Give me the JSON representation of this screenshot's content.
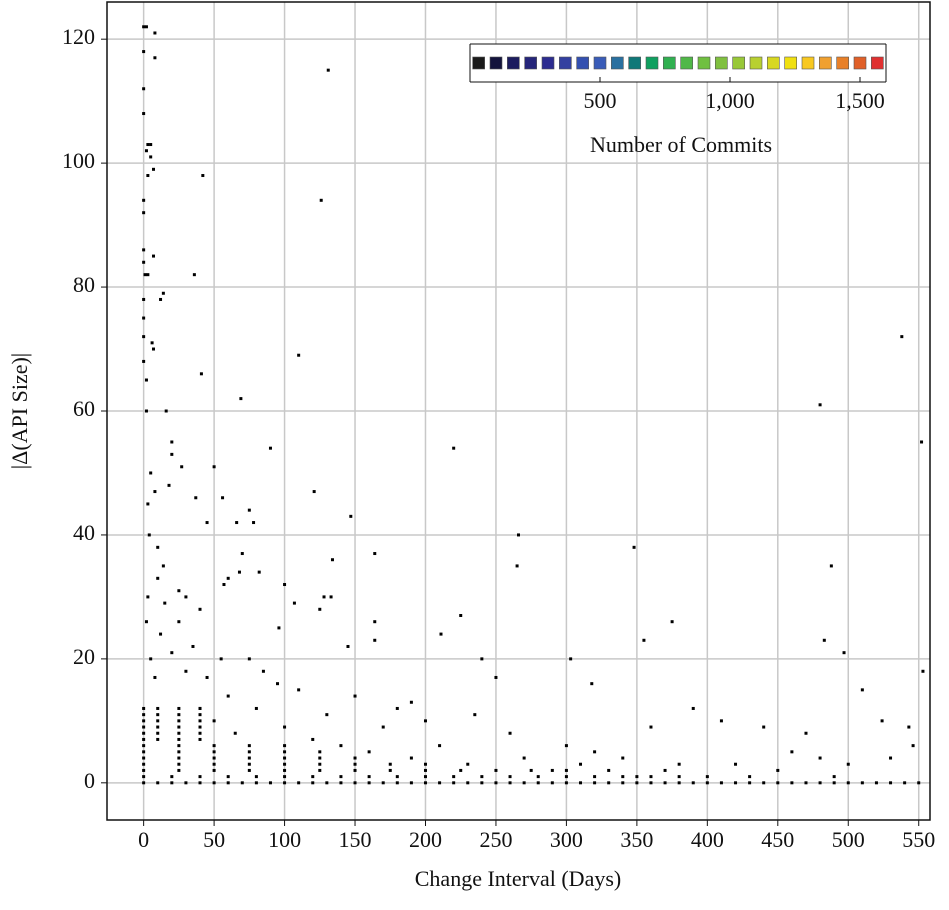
{
  "chart_data": {
    "type": "scatter",
    "x_label": "Change Interval (Days)",
    "y_label": "|Δ(API Size)|",
    "xlim": [
      -26,
      558
    ],
    "ylim": [
      -6,
      126
    ],
    "xticks": [
      0,
      50,
      100,
      150,
      200,
      250,
      300,
      350,
      400,
      450,
      500,
      550
    ],
    "yticks": [
      0,
      20,
      40,
      60,
      80,
      100,
      120
    ],
    "grid": true,
    "color": "#000000",
    "x": [
      0,
      10,
      20,
      30,
      40,
      50,
      60,
      70,
      80,
      90,
      100,
      110,
      120,
      130,
      140,
      150,
      160,
      170,
      180,
      190,
      200,
      210,
      220,
      230,
      240,
      250,
      260,
      270,
      280,
      290,
      300,
      310,
      320,
      330,
      340,
      350,
      360,
      370,
      380,
      390,
      400,
      410,
      420,
      430,
      440,
      450,
      460,
      470,
      480,
      490,
      500,
      510,
      520,
      530,
      540,
      550,
      0,
      20,
      40,
      60,
      80,
      100,
      120,
      140,
      160,
      180,
      200,
      220,
      240,
      260,
      280,
      300,
      320,
      340,
      360,
      380,
      400,
      0,
      25,
      50,
      75,
      100,
      125,
      150,
      175,
      200,
      225,
      250,
      275,
      300,
      0,
      25,
      50,
      75,
      100,
      125,
      150,
      175,
      200,
      0,
      25,
      50,
      75,
      100,
      125,
      150,
      0,
      25,
      50,
      75,
      100,
      125,
      0,
      25,
      50,
      75,
      100,
      0,
      10,
      25,
      40,
      0,
      10,
      25,
      40,
      0,
      10,
      25,
      40,
      0,
      10,
      25,
      40,
      0,
      10,
      25,
      40,
      0,
      10,
      25,
      40,
      0,
      2,
      8,
      8,
      0,
      0,
      0,
      3,
      5,
      2,
      5,
      7,
      3,
      0,
      0,
      0,
      0,
      1,
      3,
      7,
      14,
      12,
      0,
      0,
      7,
      6,
      0,
      0,
      2,
      2,
      16,
      42,
      36,
      41,
      126,
      131,
      110,
      69,
      90,
      121,
      147,
      220,
      266,
      265,
      348,
      164,
      134,
      480,
      538,
      552,
      488,
      483,
      497,
      553,
      303,
      318,
      355,
      375,
      211,
      225,
      510,
      524,
      543,
      546,
      20,
      20,
      27,
      50,
      18,
      5,
      8,
      37,
      56,
      75,
      78,
      66,
      45,
      100,
      107,
      128,
      125,
      133,
      145,
      164,
      164,
      57,
      60,
      68,
      70,
      82,
      96,
      3,
      4,
      10,
      14,
      25,
      30,
      40,
      55,
      85,
      110,
      150,
      180,
      200,
      235,
      260,
      300,
      320,
      340,
      380,
      420,
      460,
      480,
      500,
      530,
      360,
      390,
      410,
      440,
      470,
      240,
      250,
      190,
      170,
      130,
      95,
      75,
      60,
      45,
      35,
      25,
      15,
      10,
      3,
      2,
      5,
      8,
      12,
      20,
      30,
      40,
      50,
      65,
      80,
      100,
      120,
      140,
      160,
      190,
      210,
      230,
      270,
      290,
      310,
      330,
      350,
      370,
      430,
      450,
      490
    ],
    "values": [
      0,
      0,
      0,
      0,
      0,
      0,
      0,
      0,
      0,
      0,
      0,
      0,
      0,
      0,
      0,
      0,
      0,
      0,
      0,
      0,
      0,
      0,
      0,
      0,
      0,
      0,
      0,
      0,
      0,
      0,
      0,
      0,
      0,
      0,
      0,
      0,
      0,
      0,
      0,
      0,
      0,
      0,
      0,
      0,
      0,
      0,
      0,
      0,
      0,
      0,
      0,
      0,
      0,
      0,
      0,
      0,
      1,
      1,
      1,
      1,
      1,
      1,
      1,
      1,
      1,
      1,
      1,
      1,
      1,
      1,
      1,
      1,
      1,
      1,
      1,
      1,
      1,
      2,
      2,
      2,
      2,
      2,
      2,
      2,
      2,
      2,
      2,
      2,
      2,
      2,
      3,
      3,
      3,
      3,
      3,
      3,
      3,
      3,
      3,
      4,
      4,
      4,
      4,
      4,
      4,
      4,
      5,
      5,
      5,
      5,
      5,
      5,
      6,
      6,
      6,
      6,
      6,
      7,
      7,
      7,
      7,
      8,
      8,
      8,
      8,
      9,
      9,
      9,
      9,
      10,
      10,
      10,
      10,
      11,
      11,
      11,
      11,
      12,
      12,
      12,
      12,
      122,
      122,
      121,
      117,
      118,
      112,
      108,
      103,
      103,
      102,
      101,
      99,
      98,
      94,
      92,
      86,
      84,
      82,
      82,
      85,
      79,
      78,
      78,
      75,
      70,
      71,
      72,
      68,
      65,
      60,
      60,
      98,
      82,
      66,
      94,
      115,
      69,
      62,
      54,
      47,
      43,
      54,
      40,
      35,
      38,
      37,
      36,
      61,
      72,
      55,
      35,
      23,
      21,
      18,
      20,
      16,
      23,
      26,
      24,
      27,
      15,
      10,
      9,
      6,
      55,
      53,
      51,
      51,
      48,
      50,
      47,
      46,
      46,
      44,
      42,
      42,
      42,
      32,
      29,
      30,
      28,
      30,
      22,
      26,
      23,
      32,
      33,
      34,
      37,
      34,
      25,
      45,
      40,
      38,
      35,
      31,
      30,
      28,
      20,
      18,
      15,
      14,
      12,
      10,
      11,
      8,
      6,
      5,
      4,
      3,
      3,
      5,
      4,
      3,
      4,
      9,
      12,
      10,
      9,
      8,
      20,
      17,
      13,
      9,
      11,
      16,
      20,
      14,
      17,
      22,
      26,
      29,
      33,
      30,
      26,
      20,
      17,
      24,
      21,
      18,
      12,
      10,
      8,
      12,
      9,
      7,
      6,
      5,
      4,
      6,
      3,
      4,
      2,
      3,
      2,
      1,
      2,
      1,
      2,
      1
    ],
    "colorbar": {
      "label": "Number of Commits",
      "lim": [
        0,
        1600
      ],
      "ticks": [
        500,
        {
          "value": 1000,
          "label": "1,000"
        },
        {
          "value": 1500,
          "label": "1,500"
        }
      ],
      "colors": [
        "#1a1a1a",
        "#14143c",
        "#1c1c5e",
        "#25257a",
        "#2c2c90",
        "#3340a0",
        "#3450b0",
        "#3a5cb8",
        "#2a70a0",
        "#107878",
        "#10a060",
        "#30b050",
        "#50b848",
        "#70c040",
        "#80c040",
        "#98c838",
        "#b8d030",
        "#d8d820",
        "#f0e010",
        "#f8c820",
        "#f0a030",
        "#e88028",
        "#e06028",
        "#e03030"
      ]
    }
  }
}
